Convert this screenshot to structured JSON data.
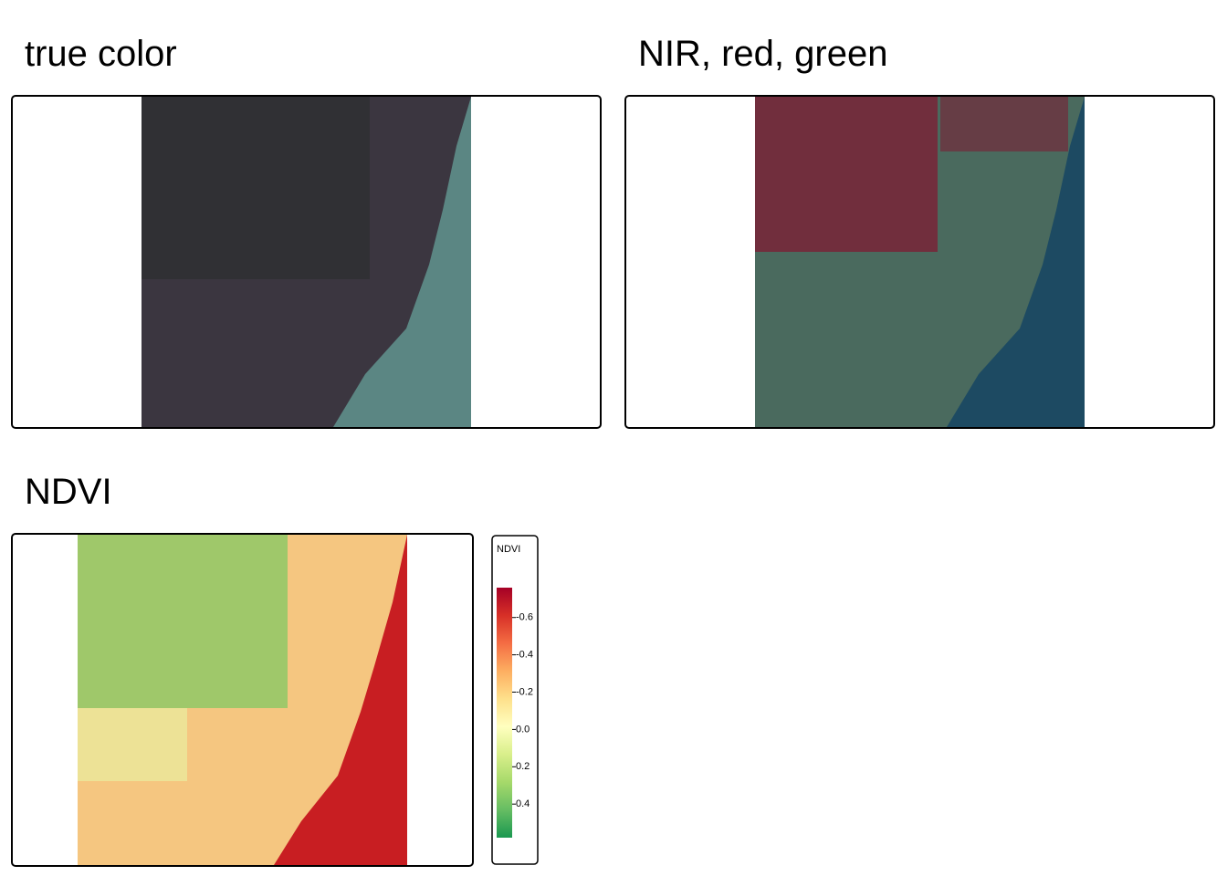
{
  "panels": [
    {
      "title": "true color"
    },
    {
      "title": "NIR, red, green"
    },
    {
      "title": "NDVI"
    }
  ],
  "legend": {
    "title": "NDVI",
    "ylim": [
      -0.76,
      0.58
    ],
    "yticks": [
      -0.6,
      -0.4,
      -0.2,
      {
        "value": 0,
        "label": "0.0"
      },
      0.2,
      0.4
    ],
    "palette": [
      "#a50026",
      "#d73027",
      "#f46d43",
      "#fdae61",
      "#fee08b",
      "#ffffbf",
      "#d9ef8b",
      "#a6d96a",
      "#66bd63",
      "#1a9850"
    ]
  }
}
